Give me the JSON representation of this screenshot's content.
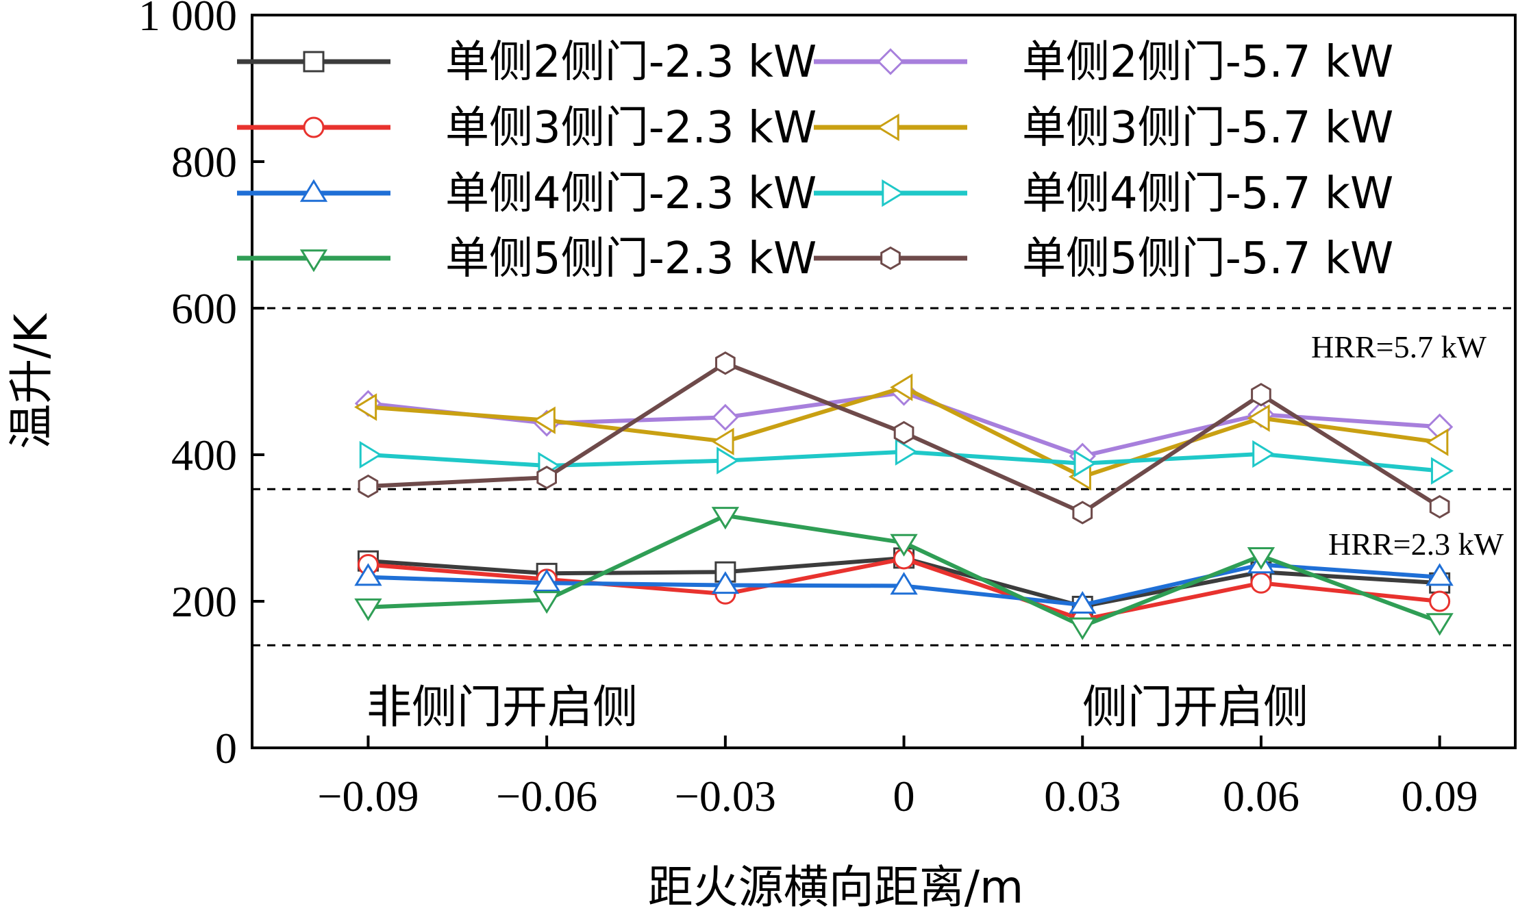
{
  "chart_data": {
    "type": "line",
    "xlabel": "距火源横向距离/m",
    "ylabel": "温升/K",
    "x": [
      -0.09,
      -0.06,
      -0.03,
      0,
      0.03,
      0.06,
      0.09
    ],
    "x_tick_labels": [
      "−0.09",
      "−0.06",
      "−0.03",
      "0",
      "0.03",
      "0.06",
      "0.09"
    ],
    "xlim": [
      -0.1095,
      0.1027
    ],
    "ylim": [
      0,
      1000
    ],
    "y_ticks": [
      0,
      200,
      400,
      600,
      800,
      1000
    ],
    "y_tick_labels": [
      "0",
      "200",
      "400",
      "600",
      "800",
      "1 000"
    ],
    "legend_position": "top",
    "series": [
      {
        "name": "单侧2侧门-2.3 kW",
        "color": "#3c3c3c",
        "marker": "square",
        "values": [
          255,
          238,
          240,
          259,
          193,
          240,
          225
        ]
      },
      {
        "name": "单侧3侧门-2.3 kW",
        "color": "#e8322e",
        "marker": "circle",
        "values": [
          250,
          230,
          210,
          258,
          175,
          225,
          200
        ]
      },
      {
        "name": "单侧4侧门-2.3 kW",
        "color": "#1f6fd6",
        "marker": "triangle-up",
        "values": [
          233,
          225,
          222,
          221,
          195,
          250,
          233
        ]
      },
      {
        "name": "单侧5侧门-2.3 kW",
        "color": "#2f9e55",
        "marker": "triangle-down",
        "values": [
          192,
          202,
          317,
          280,
          166,
          262,
          172
        ]
      },
      {
        "name": "单侧2侧门-5.7 kW",
        "color": "#a77fdc",
        "marker": "diamond",
        "values": [
          470,
          443,
          451,
          485,
          398,
          455,
          438
        ]
      },
      {
        "name": "单侧3侧门-5.7 kW",
        "color": "#c9a012",
        "marker": "triangle-left",
        "values": [
          465,
          447,
          418,
          492,
          370,
          450,
          417
        ]
      },
      {
        "name": "单侧4侧门-5.7 kW",
        "color": "#1fc8c8",
        "marker": "triangle-right",
        "values": [
          400,
          385,
          392,
          404,
          388,
          401,
          378
        ]
      },
      {
        "name": "单侧5侧门-5.7 kW",
        "color": "#6e4a4a",
        "marker": "hexagon",
        "values": [
          357,
          369,
          525,
          430,
          321,
          482,
          329
        ]
      }
    ],
    "reference_lines": [
      {
        "y": 600,
        "style": "dashed"
      },
      {
        "y": 353,
        "style": "dashed"
      },
      {
        "y": 140,
        "style": "dashed"
      }
    ],
    "annotations": [
      {
        "text": "HRR=5.7 kW"
      },
      {
        "text": "HRR=2.3 kW"
      },
      {
        "text": "非侧门开启侧"
      },
      {
        "text": "侧门开启侧"
      }
    ]
  }
}
